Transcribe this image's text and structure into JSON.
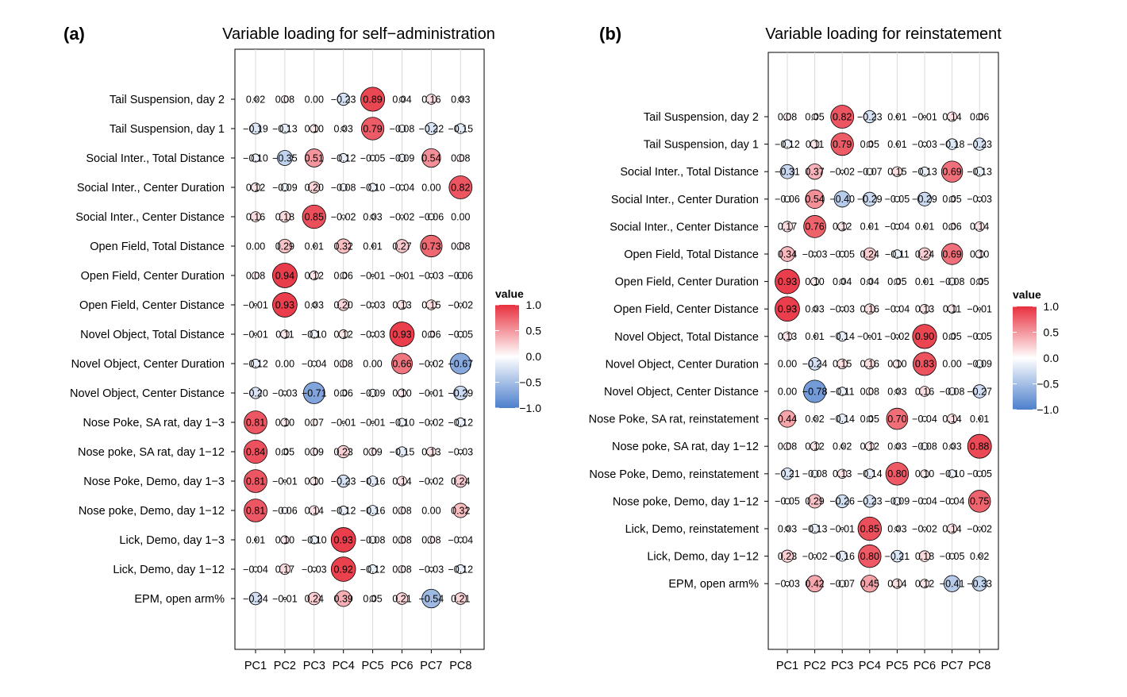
{
  "colors": {
    "positive": "#e8303e",
    "neutral": "#ffffff",
    "negative": "#4c7fcc",
    "grid": "#d9d9d9"
  },
  "chart_data": [
    {
      "type": "bubble-matrix",
      "panel_label": "(a)",
      "title": "Variable loading for self−administration",
      "columns": [
        "PC1",
        "PC2",
        "PC3",
        "PC4",
        "PC5",
        "PC6",
        "PC7",
        "PC8"
      ],
      "rows": [
        "Tail Suspension, day 2",
        "Tail Suspension, day 1",
        "Social Inter., Total Distance",
        "Social Inter., Center Duration",
        "Social Inter., Center Distance",
        "Open Field, Total Distance",
        "Open Field, Center Duration",
        "Open Field, Center Distance",
        "Novel Object, Total Distance",
        "Novel Object, Center Duration",
        "Novel Object, Center Distance",
        "Nose Poke, SA rat, day 1−3",
        "Nose poke, SA rat, day 1−12",
        "Nose Poke, Demo, day 1−3",
        "Nose poke, Demo, day 1−12",
        "Lick, Demo, day 1−3",
        "Lick, Demo, day 1−12",
        "EPM, open arm%"
      ],
      "values": [
        [
          0.02,
          0.08,
          0.0,
          -0.23,
          0.89,
          0.04,
          0.16,
          0.03
        ],
        [
          -0.19,
          -0.13,
          0.1,
          0.03,
          0.79,
          -0.08,
          -0.22,
          -0.15
        ],
        [
          -0.1,
          -0.35,
          0.51,
          -0.12,
          -0.05,
          -0.09,
          0.54,
          0.08
        ],
        [
          0.12,
          -0.09,
          0.2,
          -0.08,
          -0.1,
          -0.04,
          0.0,
          0.82
        ],
        [
          0.16,
          0.18,
          0.85,
          -0.02,
          0.03,
          -0.02,
          -0.06,
          0.0
        ],
        [
          0.0,
          0.29,
          0.01,
          0.32,
          0.01,
          0.27,
          0.73,
          0.08
        ],
        [
          0.08,
          0.94,
          0.12,
          0.06,
          -0.01,
          -0.01,
          -0.03,
          -0.06
        ],
        [
          -0.01,
          0.93,
          0.03,
          0.2,
          -0.03,
          0.13,
          0.15,
          -0.02
        ],
        [
          -0.01,
          0.11,
          -0.1,
          0.12,
          -0.03,
          0.93,
          0.06,
          -0.05
        ],
        [
          -0.12,
          0.0,
          -0.04,
          0.08,
          0.0,
          0.66,
          -0.02,
          -0.67
        ],
        [
          -0.2,
          -0.03,
          -0.71,
          0.06,
          -0.09,
          0.1,
          -0.01,
          -0.29
        ],
        [
          0.81,
          0.1,
          0.07,
          -0.01,
          -0.01,
          -0.1,
          -0.02,
          -0.12
        ],
        [
          0.84,
          0.05,
          0.09,
          0.23,
          0.09,
          -0.15,
          0.13,
          -0.03
        ],
        [
          0.81,
          -0.01,
          0.1,
          -0.23,
          -0.16,
          0.14,
          -0.02,
          0.24
        ],
        [
          0.81,
          -0.06,
          0.14,
          -0.12,
          -0.16,
          0.08,
          0.0,
          0.32
        ],
        [
          0.01,
          0.1,
          -0.1,
          0.93,
          -0.08,
          0.08,
          0.08,
          -0.04
        ],
        [
          -0.04,
          0.17,
          -0.03,
          0.92,
          -0.12,
          0.08,
          -0.03,
          -0.12
        ],
        [
          -0.24,
          -0.01,
          0.24,
          0.39,
          0.05,
          0.21,
          -0.54,
          0.21
        ]
      ],
      "legend": {
        "title": "value",
        "ticks": [
          "1.0",
          "0.5",
          "0.0",
          "−0.5",
          "−1.0"
        ],
        "range": [
          -1,
          1
        ],
        "placement": "right"
      }
    },
    {
      "type": "bubble-matrix",
      "panel_label": "(b)",
      "title": "Variable loading for reinstatement",
      "columns": [
        "PC1",
        "PC2",
        "PC3",
        "PC4",
        "PC5",
        "PC6",
        "PC7",
        "PC8"
      ],
      "rows": [
        "Tail Suspension, day 2",
        "Tail Suspension, day 1",
        "Social Inter., Total Distance",
        "Social Inter., Center Duration",
        "Social Inter., Center Distance",
        "Open Field, Total Distance",
        "Open Field, Center Duration",
        "Open Field, Center Distance",
        "Novel Object, Total Distance",
        "Novel Object, Center Duration",
        "Novel Object, Center Distance",
        "Nose Poke, SA rat, reinstatement",
        "Nose poke, SA rat, day 1−12",
        "Nose Poke, Demo, reinstatement",
        "Nose poke, Demo, day 1−12",
        "Lick, Demo, reinstatement",
        "Lick, Demo, day 1−12",
        "EPM, open arm%"
      ],
      "values": [
        [
          0.08,
          0.05,
          0.82,
          -0.23,
          0.01,
          -0.01,
          0.14,
          0.06
        ],
        [
          -0.12,
          0.11,
          0.79,
          0.05,
          0.01,
          -0.03,
          -0.18,
          -0.23
        ],
        [
          -0.31,
          0.37,
          -0.02,
          -0.07,
          0.15,
          -0.13,
          0.69,
          -0.13
        ],
        [
          -0.06,
          0.54,
          -0.4,
          -0.29,
          -0.05,
          -0.29,
          0.05,
          -0.03
        ],
        [
          0.17,
          0.76,
          0.12,
          0.01,
          -0.04,
          0.01,
          0.06,
          0.14
        ],
        [
          0.34,
          -0.03,
          -0.05,
          0.24,
          -0.11,
          0.24,
          0.69,
          0.1
        ],
        [
          0.93,
          0.1,
          0.04,
          0.04,
          0.05,
          0.01,
          -0.08,
          0.05
        ],
        [
          0.93,
          0.03,
          -0.03,
          0.16,
          -0.04,
          0.13,
          0.11,
          -0.01
        ],
        [
          0.13,
          0.01,
          -0.14,
          -0.01,
          -0.02,
          0.9,
          0.05,
          -0.05
        ],
        [
          0.0,
          -0.24,
          0.15,
          0.16,
          0.1,
          0.83,
          0.0,
          -0.09
        ],
        [
          0.0,
          -0.78,
          -0.11,
          0.08,
          0.03,
          0.16,
          -0.08,
          -0.27
        ],
        [
          0.44,
          0.02,
          -0.14,
          0.05,
          0.7,
          -0.04,
          0.14,
          0.01
        ],
        [
          0.08,
          0.12,
          0.02,
          0.12,
          0.03,
          -0.08,
          0.03,
          0.88
        ],
        [
          -0.21,
          -0.08,
          0.13,
          -0.14,
          0.8,
          0.1,
          -0.1,
          -0.05
        ],
        [
          -0.05,
          0.29,
          -0.26,
          -0.23,
          -0.09,
          -0.04,
          -0.04,
          0.75
        ],
        [
          0.03,
          -0.13,
          -0.01,
          0.85,
          0.03,
          -0.02,
          0.14,
          -0.02
        ],
        [
          0.23,
          -0.02,
          -0.16,
          0.8,
          -0.21,
          0.18,
          -0.05,
          0.02
        ],
        [
          -0.03,
          0.42,
          -0.07,
          0.45,
          0.14,
          0.12,
          -0.41,
          -0.33
        ]
      ],
      "legend": {
        "title": "value",
        "ticks": [
          "1.0",
          "0.5",
          "0.0",
          "−0.5",
          "−1.0"
        ],
        "range": [
          -1,
          1
        ],
        "placement": "right"
      }
    }
  ]
}
